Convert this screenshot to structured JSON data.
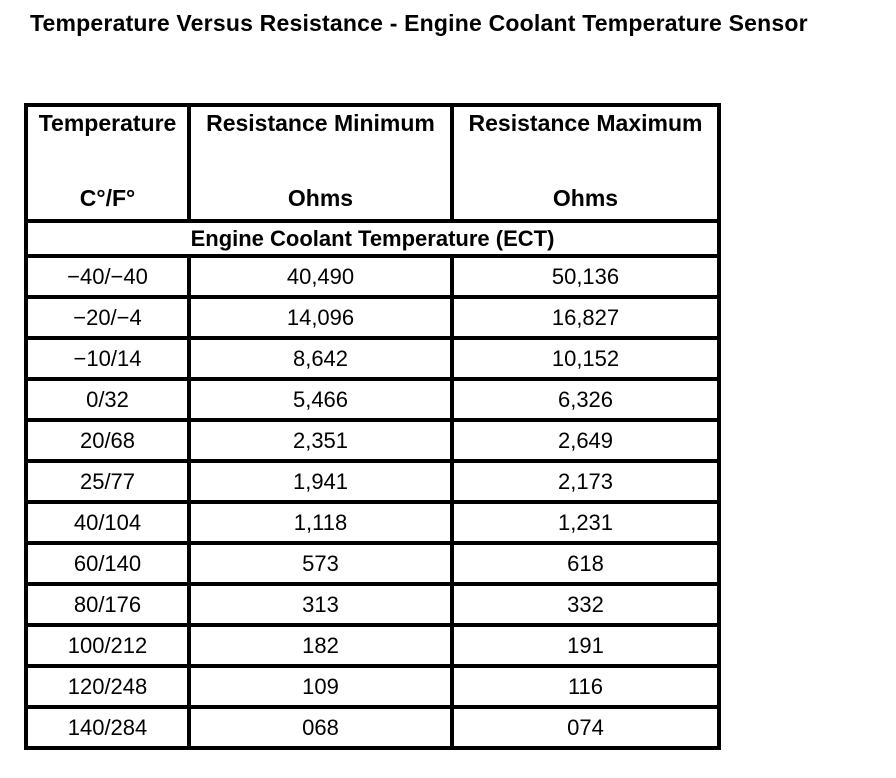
{
  "title": "Temperature Versus Resistance - Engine Coolant Temperature Sensor",
  "colors": {
    "background": "#ffffff",
    "border": "#000000",
    "text": "#000000"
  },
  "table": {
    "columns": [
      {
        "label": "Temperature",
        "unit": "C°/F°"
      },
      {
        "label": "Resistance Minimum",
        "unit": "Ohms"
      },
      {
        "label": "Resistance Maximum",
        "unit": "Ohms"
      }
    ],
    "section_header": "Engine Coolant Temperature (ECT)",
    "rows": [
      [
        "−40/−40",
        "40,490",
        "50,136"
      ],
      [
        "−20/−4",
        "14,096",
        "16,827"
      ],
      [
        "−10/14",
        "8,642",
        "10,152"
      ],
      [
        "0/32",
        "5,466",
        "6,326"
      ],
      [
        "20/68",
        "2,351",
        "2,649"
      ],
      [
        "25/77",
        "1,941",
        "2,173"
      ],
      [
        "40/104",
        "1,118",
        "1,231"
      ],
      [
        "60/140",
        "573",
        "618"
      ],
      [
        "80/176",
        "313",
        "332"
      ],
      [
        "100/212",
        "182",
        "191"
      ],
      [
        "120/248",
        "109",
        "116"
      ],
      [
        "140/284",
        "068",
        "074"
      ]
    ]
  },
  "chart_data": {
    "type": "table",
    "title": "Temperature Versus Resistance - Engine Coolant Temperature Sensor",
    "section": "Engine Coolant Temperature (ECT)",
    "columns": [
      "Temperature C°/F°",
      "Resistance Minimum Ohms",
      "Resistance Maximum Ohms"
    ],
    "temperature_c": [
      -40,
      -20,
      -10,
      0,
      20,
      25,
      40,
      60,
      80,
      100,
      120,
      140
    ],
    "temperature_f": [
      -40,
      -4,
      14,
      32,
      68,
      77,
      104,
      140,
      176,
      212,
      248,
      284
    ],
    "resistance_min_ohms": [
      40490,
      14096,
      8642,
      5466,
      2351,
      1941,
      1118,
      573,
      313,
      182,
      109,
      68
    ],
    "resistance_max_ohms": [
      50136,
      16827,
      10152,
      6326,
      2649,
      2173,
      1231,
      618,
      332,
      191,
      116,
      74
    ]
  }
}
